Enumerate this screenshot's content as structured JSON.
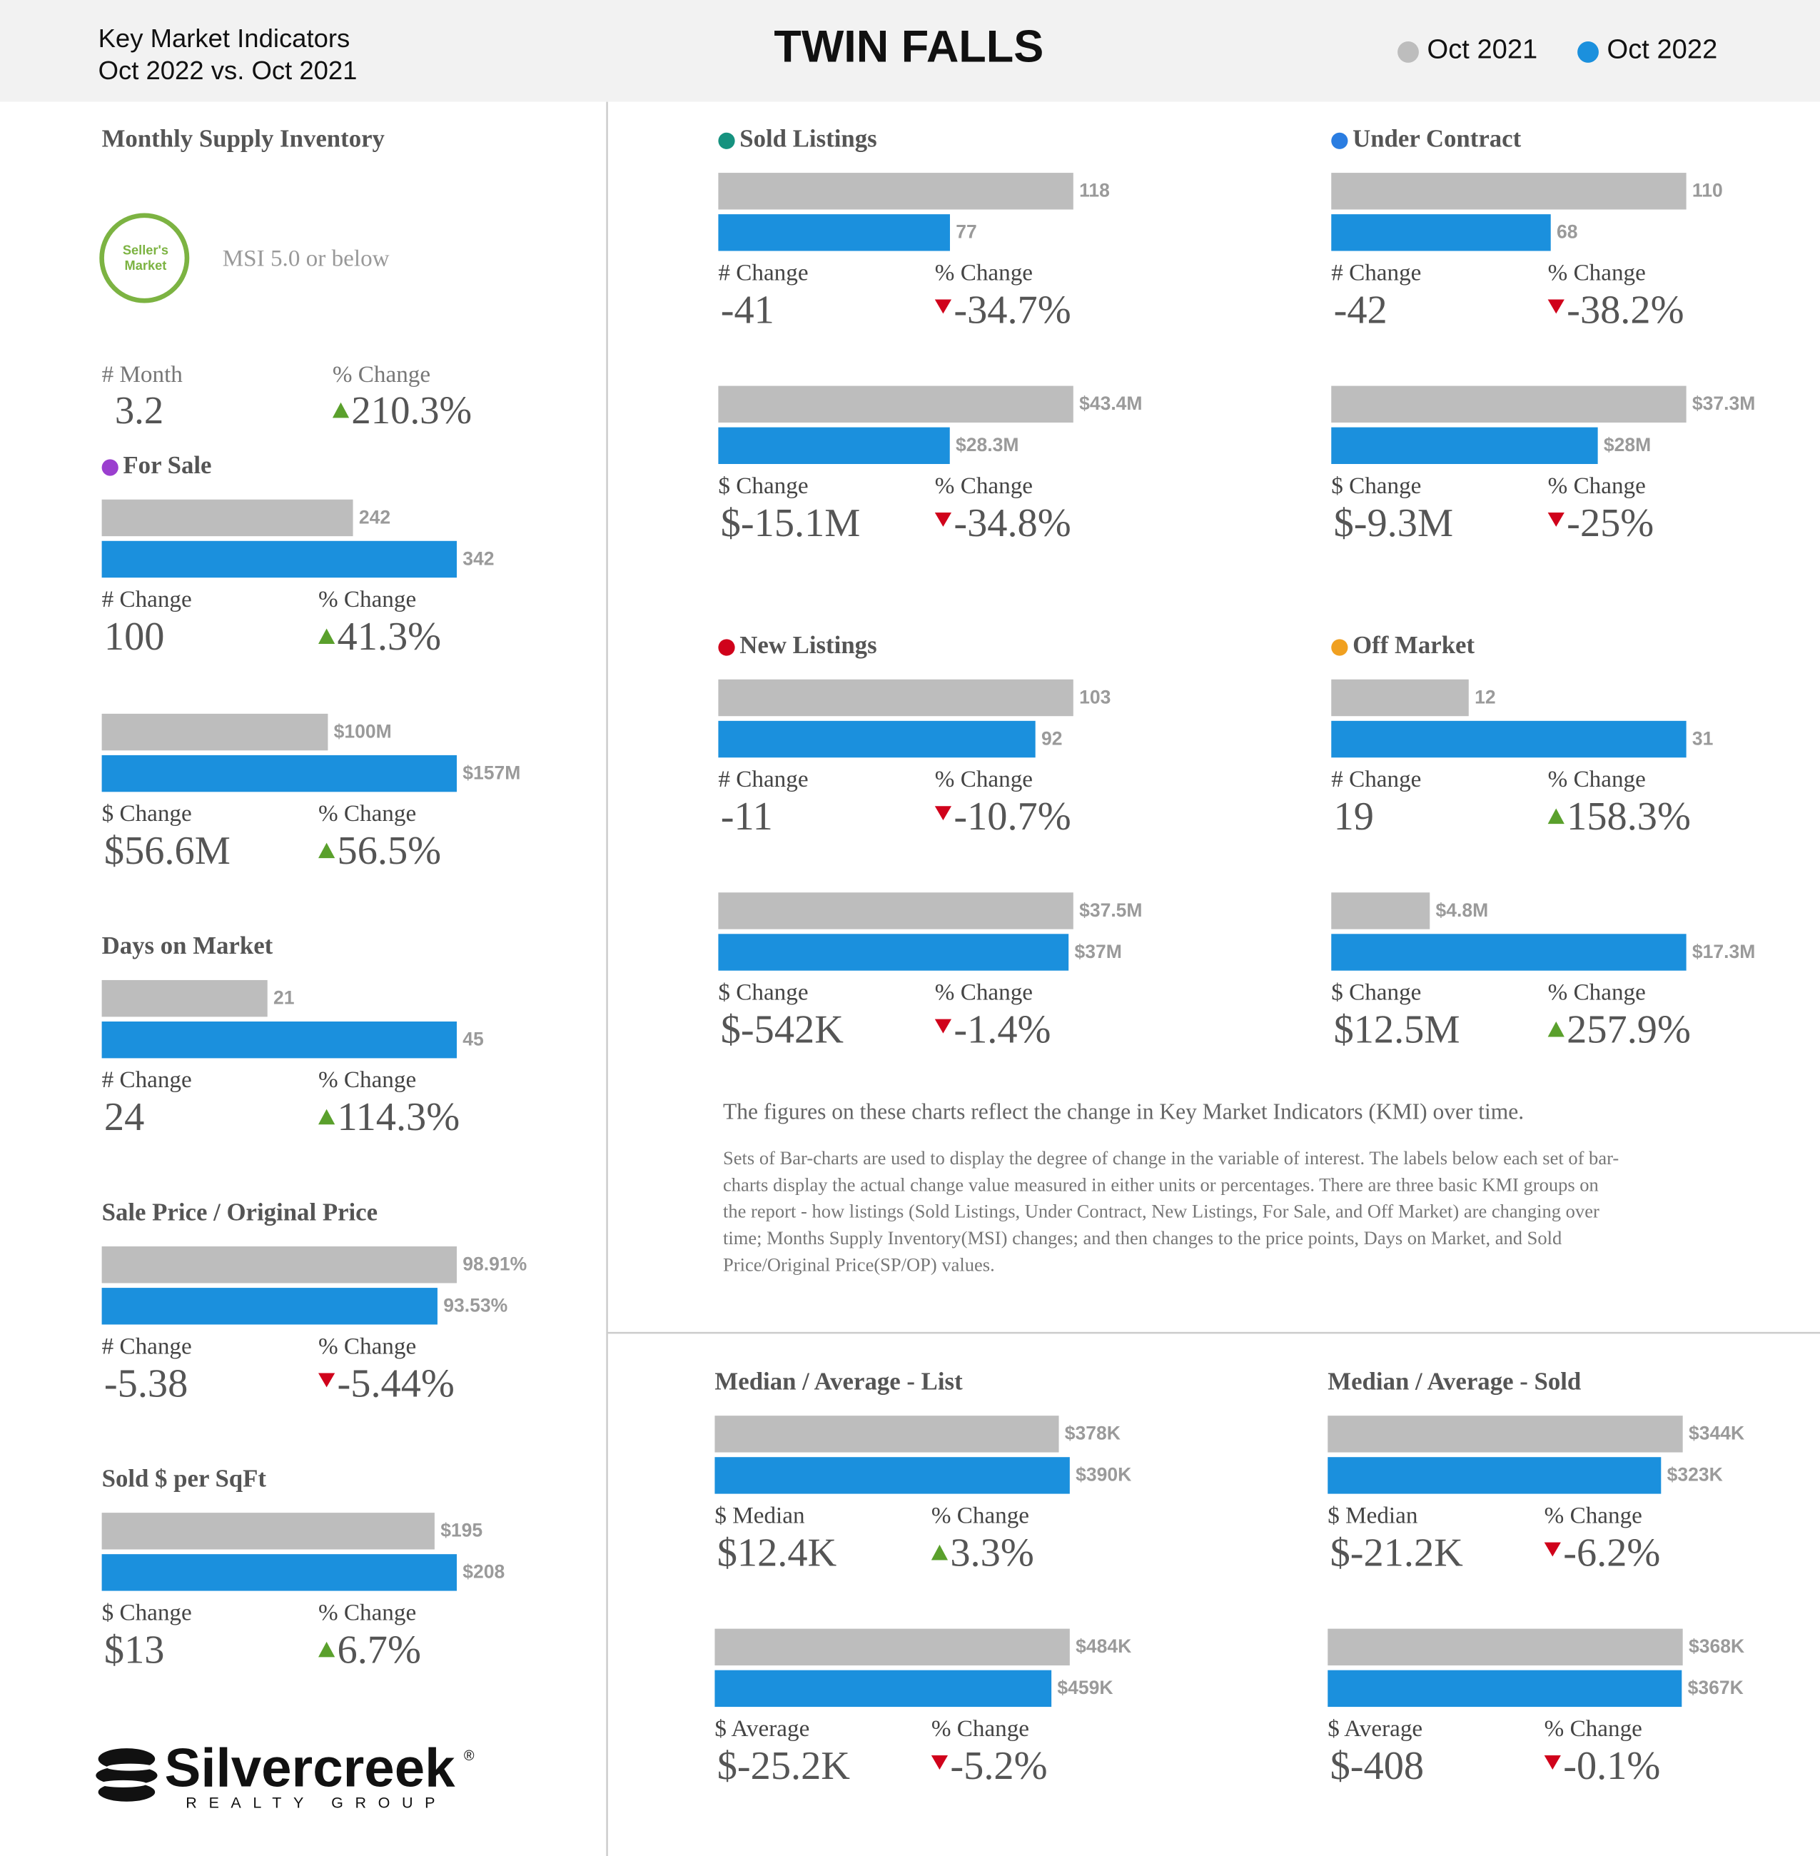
{
  "header": {
    "subtitle_line1": "Key Market Indicators",
    "subtitle_line2": "Oct 2022 vs. Oct 2021",
    "title": "TWIN FALLS"
  },
  "legend": [
    {
      "name": "Oct 2021",
      "color": "#bdbdbd"
    },
    {
      "name": "Oct 2022",
      "color": "#1b90dd"
    }
  ],
  "msi": {
    "title": "Monthly Supply Inventory",
    "badge": [
      "Seller's",
      "Market"
    ],
    "note": "MSI 5.0 or below",
    "count_label": "# Month",
    "count": "3.2",
    "pct_label": "% Change",
    "pct": "210.3%",
    "direction": "up"
  },
  "chart_data": [
    {
      "type": "bar",
      "title": "For Sale",
      "dot": "#9b3fcf",
      "values": [
        242,
        342
      ],
      "change_label": "# Change",
      "change": "100",
      "pct_label": "% Change",
      "pct": "41.3%",
      "direction": "up"
    },
    {
      "type": "bar",
      "values": [
        100000000,
        157000000
      ],
      "value_labels": [
        "$100M",
        "$157M"
      ],
      "change_label": "$ Change",
      "change": "$56.6M",
      "pct_label": "% Change",
      "pct": "56.5%",
      "direction": "up"
    },
    {
      "type": "bar",
      "title": "Days on Market",
      "values": [
        21,
        45
      ],
      "change_label": "# Change",
      "change": "24",
      "pct_label": "% Change",
      "pct": "114.3%",
      "direction": "up"
    },
    {
      "type": "bar",
      "title": "Sale Price / Original Price",
      "values": [
        98.91,
        93.53
      ],
      "value_labels": [
        "98.91%",
        "93.53%"
      ],
      "change_label": "# Change",
      "change": "-5.38",
      "pct_label": "% Change",
      "pct": "-5.44%",
      "direction": "down"
    },
    {
      "type": "bar",
      "title": "Sold $ per SqFt",
      "values": [
        195,
        208
      ],
      "value_labels": [
        "$195",
        "$208"
      ],
      "change_label": "$ Change",
      "change": "$13",
      "pct_label": "% Change",
      "pct": "6.7%",
      "direction": "up"
    },
    {
      "type": "bar",
      "title": "Sold Listings",
      "dot": "#16927f",
      "values": [
        118,
        77
      ],
      "change_label": "# Change",
      "change": "-41",
      "pct_label": "% Change",
      "pct": "-34.7%",
      "direction": "down"
    },
    {
      "type": "bar",
      "values": [
        43400000,
        28300000
      ],
      "value_labels": [
        "$43.4M",
        "$28.3M"
      ],
      "change_label": "$ Change",
      "change": "$-15.1M",
      "pct_label": "% Change",
      "pct": "-34.8%",
      "direction": "down"
    },
    {
      "type": "bar",
      "title": "New Listings",
      "dot": "#d0021b",
      "values": [
        103,
        92
      ],
      "change_label": "# Change",
      "change": "-11",
      "pct_label": "% Change",
      "pct": "-10.7%",
      "direction": "down"
    },
    {
      "type": "bar",
      "values": [
        37500000,
        37000000
      ],
      "value_labels": [
        "$37.5M",
        "$37M"
      ],
      "change_label": "$ Change",
      "change": "$-542K",
      "pct_label": "% Change",
      "pct": "-1.4%",
      "direction": "down"
    },
    {
      "type": "bar",
      "title": "Under Contract",
      "dot": "#2a7de1",
      "values": [
        110,
        68
      ],
      "change_label": "# Change",
      "change": "-42",
      "pct_label": "% Change",
      "pct": "-38.2%",
      "direction": "down"
    },
    {
      "type": "bar",
      "values": [
        37300000,
        28000000
      ],
      "value_labels": [
        "$37.3M",
        "$28M"
      ],
      "change_label": "$ Change",
      "change": "$-9.3M",
      "pct_label": "% Change",
      "pct": "-25%",
      "direction": "down"
    },
    {
      "type": "bar",
      "title": "Off Market",
      "dot": "#f0a020",
      "values": [
        12,
        31
      ],
      "change_label": "# Change",
      "change": "19",
      "pct_label": "% Change",
      "pct": "158.3%",
      "direction": "up"
    },
    {
      "type": "bar",
      "values": [
        4800000,
        17300000
      ],
      "value_labels": [
        "$4.8M",
        "$17.3M"
      ],
      "change_label": "$ Change",
      "change": "$12.5M",
      "pct_label": "% Change",
      "pct": "257.9%",
      "direction": "up"
    },
    {
      "type": "bar",
      "title": "Median / Average - List",
      "values": [
        378000,
        390000
      ],
      "value_labels": [
        "$378K",
        "$390K"
      ],
      "change_label": "$ Median",
      "change": "$12.4K",
      "pct_label": "% Change",
      "pct": "3.3%",
      "direction": "up"
    },
    {
      "type": "bar",
      "values": [
        484000,
        459000
      ],
      "value_labels": [
        "$484K",
        "$459K"
      ],
      "change_label": "$ Average",
      "change": "$-25.2K",
      "pct_label": "% Change",
      "pct": "-5.2%",
      "direction": "down"
    },
    {
      "type": "bar",
      "title": "Median / Average - Sold",
      "values": [
        344000,
        323000
      ],
      "value_labels": [
        "$344K",
        "$323K"
      ],
      "change_label": "$ Median",
      "change": "$-21.2K",
      "pct_label": "% Change",
      "pct": "-6.2%",
      "direction": "down"
    },
    {
      "type": "bar",
      "values": [
        368000,
        367000
      ],
      "value_labels": [
        "$368K",
        "$367K"
      ],
      "change_label": "$ Average",
      "change": "$-408",
      "pct_label": "% Change",
      "pct": "-0.1%",
      "direction": "down"
    }
  ],
  "description": {
    "lead": "The figures on these charts reflect the change in Key Market Indicators (KMI) over time.",
    "lines": [
      "Sets of Bar-charts are used to display the degree of change in the variable of interest. The labels below each set of bar-",
      "charts display the actual change value measured in either units or percentages. There are three basic KMI groups on",
      "the report - how listings (Sold Listings, Under Contract, New Listings, For Sale, and Off Market) are changing over",
      "time; Months Supply Inventory(MSI) changes; and then changes to the price points, Days on Market, and Sold",
      "Price/Original Price(SP/OP) values."
    ]
  },
  "logo": {
    "name": "Silvercreek",
    "mark": "®",
    "tagline": "REALTY GROUP"
  }
}
